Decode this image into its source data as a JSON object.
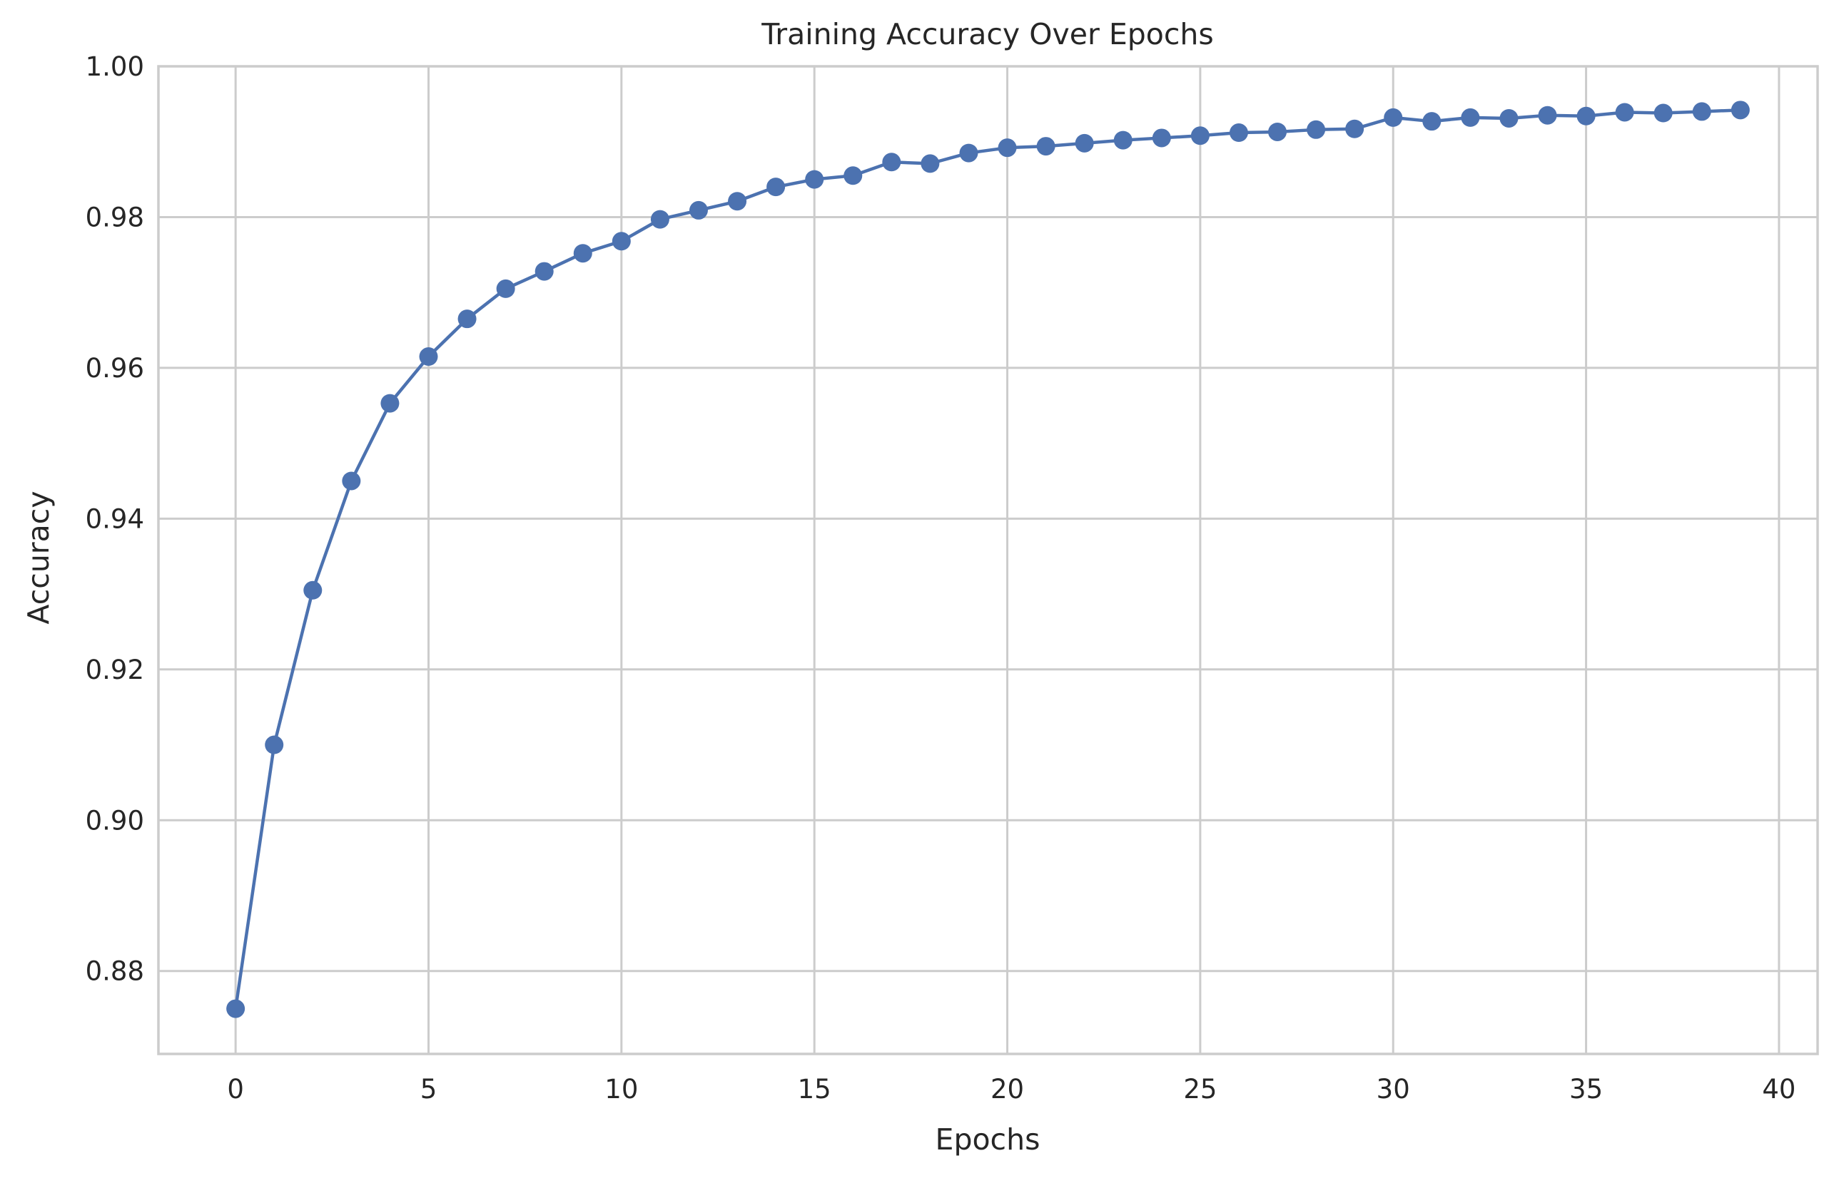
{
  "chart_data": {
    "type": "line",
    "title": "Training Accuracy Over Epochs",
    "xlabel": "Epochs",
    "ylabel": "Accuracy",
    "xlim": [
      -2,
      41
    ],
    "ylim": [
      0.869,
      1.0
    ],
    "x_ticks": [
      0,
      5,
      10,
      15,
      20,
      25,
      30,
      35,
      40
    ],
    "x_tick_labels": [
      "0",
      "5",
      "10",
      "15",
      "20",
      "25",
      "30",
      "35",
      "40"
    ],
    "y_ticks": [
      0.88,
      0.9,
      0.92,
      0.94,
      0.96,
      0.98,
      1.0
    ],
    "y_tick_labels": [
      "0.88",
      "0.90",
      "0.92",
      "0.94",
      "0.96",
      "0.98",
      "1.00"
    ],
    "grid": true,
    "legend": "none",
    "color": "#4c72b0",
    "series": [
      {
        "marker": "circle",
        "x": [
          0,
          1,
          2,
          3,
          4,
          5,
          6,
          7,
          8,
          9,
          10,
          11,
          12,
          13,
          14,
          15,
          16,
          17,
          18,
          19,
          20,
          21,
          22,
          23,
          24,
          25,
          26,
          27,
          28,
          29,
          30,
          31,
          32,
          33,
          34,
          35,
          36,
          37,
          38,
          39
        ],
        "values": [
          0.875,
          0.91,
          0.9305,
          0.945,
          0.9553,
          0.9615,
          0.9665,
          0.9705,
          0.9728,
          0.9752,
          0.9768,
          0.9797,
          0.9809,
          0.9821,
          0.984,
          0.985,
          0.9855,
          0.9873,
          0.9871,
          0.9885,
          0.9892,
          0.9894,
          0.9898,
          0.9902,
          0.9905,
          0.9908,
          0.9912,
          0.9913,
          0.9916,
          0.9917,
          0.9932,
          0.9927,
          0.9932,
          0.9931,
          0.9935,
          0.9934,
          0.9939,
          0.9938,
          0.994,
          0.9942
        ]
      }
    ]
  }
}
